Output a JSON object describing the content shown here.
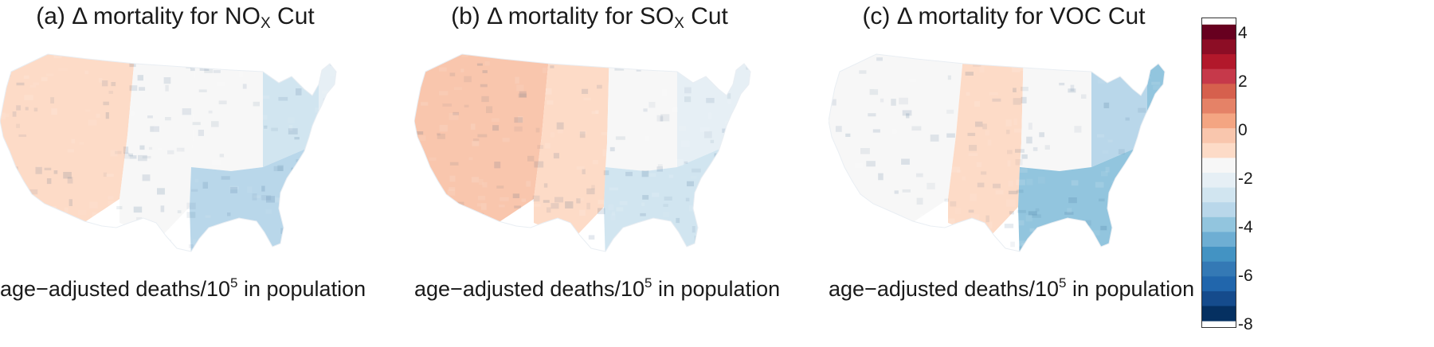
{
  "panels": [
    {
      "prefix": "(a) ",
      "delta": "Δ",
      "pre": " mortality for NO",
      "sub": "X",
      "post": " Cut",
      "caption_pre": "age−adjusted deaths/10",
      "caption_sup": "5",
      "caption_post": " in population"
    },
    {
      "prefix": "(b) ",
      "delta": "Δ",
      "pre": " mortality for SO",
      "sub": "X",
      "post": " Cut",
      "caption_pre": "age−adjusted deaths/10",
      "caption_sup": "5",
      "caption_post": " in population"
    },
    {
      "prefix": "(c) ",
      "delta": "Δ",
      "pre": " mortality for VOC Cut",
      "sub": "",
      "post": "",
      "caption_pre": "age−adjusted deaths/10",
      "caption_sup": "5",
      "caption_post": " in population"
    }
  ],
  "legend": {
    "min": -8,
    "max": 4,
    "ticks": [
      "4",
      "2",
      "0",
      "-2",
      "-4",
      "-6",
      "-8"
    ],
    "colors_high_to_low": [
      "#67001f",
      "#8c0d25",
      "#b2182b",
      "#c6394a",
      "#d6604d",
      "#e58267",
      "#f4a582",
      "#f9c6ad",
      "#fddbc7",
      "#f7f7f7",
      "#e6eff5",
      "#d1e5f0",
      "#b9d7ea",
      "#92c5de",
      "#6eaed3",
      "#4393c3",
      "#3479b5",
      "#2166ac",
      "#154b8c",
      "#053061"
    ]
  },
  "maps": {
    "region_levels": [
      [
        -1.3,
        -1.5,
        -1.8,
        -2.8,
        -3.4,
        -2.6
      ],
      [
        -0.4,
        -0.9,
        -1.6,
        -2.4,
        -2.8,
        -2.0
      ],
      [
        -1.6,
        -1.2,
        -1.8,
        -3.4,
        -3.8,
        -4.0
      ]
    ]
  }
}
